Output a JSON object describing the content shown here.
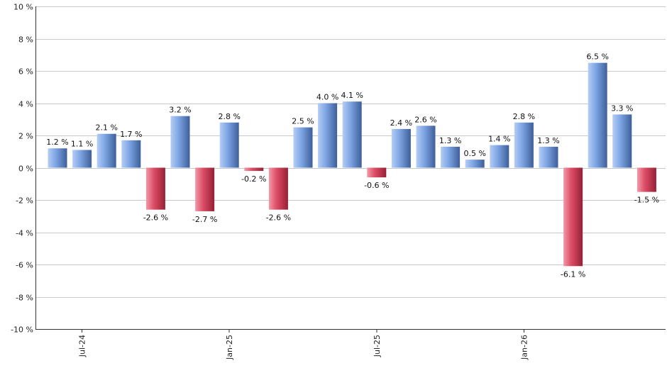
{
  "chart_data": {
    "type": "bar",
    "title": "",
    "xlabel": "",
    "ylabel": "",
    "ylim": [
      -10,
      10
    ],
    "y_ticks": [
      -10,
      -8,
      -6,
      -4,
      -2,
      0,
      2,
      4,
      6,
      8,
      10
    ],
    "y_tick_suffix": " %",
    "grid": true,
    "values": [
      1.2,
      1.1,
      2.1,
      1.7,
      -2.6,
      3.2,
      -2.7,
      2.8,
      -0.2,
      -2.6,
      2.5,
      4.0,
      4.1,
      -0.6,
      2.4,
      2.6,
      1.3,
      0.5,
      1.4,
      2.8,
      1.3,
      -6.1,
      6.5,
      3.3,
      -1.5
    ],
    "data_labels": [
      "1.2 %",
      "1.1 %",
      "2.1 %",
      "1.7 %",
      "-2.6 %",
      "3.2 %",
      "-2.7 %",
      "2.8 %",
      "-0.2 %",
      "-2.6 %",
      "2.5 %",
      "4.0 %",
      "4.1 %",
      "-0.6 %",
      "2.4 %",
      "2.6 %",
      "1.3 %",
      "0.5 %",
      "1.4 %",
      "2.8 %",
      "1.3 %",
      "-6.1 %",
      "6.5 %",
      "3.3 %",
      "-1.5 %"
    ],
    "x_tick_labels": [
      {
        "label": "Jul-24",
        "bar_index": 1
      },
      {
        "label": "Jan-25",
        "bar_index": 7
      },
      {
        "label": "Jul-25",
        "bar_index": 13
      },
      {
        "label": "Jan-26",
        "bar_index": 19
      }
    ],
    "colors": {
      "positive_light": "#b4cdf6",
      "positive_mid": "#7fa6e4",
      "positive_dark": "#3d5f9a",
      "negative_light": "#f29aa8",
      "negative_mid": "#dd4d66",
      "negative_dark": "#962035"
    }
  }
}
